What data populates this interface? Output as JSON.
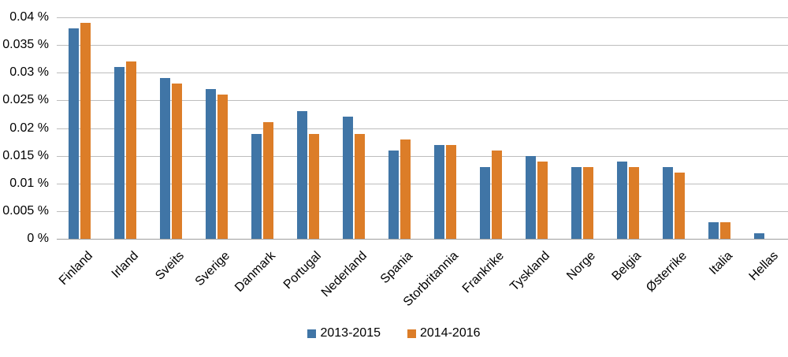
{
  "chart_data": {
    "type": "bar",
    "title": "",
    "xlabel": "",
    "ylabel": "",
    "categories": [
      "Finland",
      "Irland",
      "Sveits",
      "Sverige",
      "Danmark",
      "Portugal",
      "Nederland",
      "Spania",
      "Storbritannia",
      "Frankrike",
      "Tyskland",
      "Norge",
      "Belgia",
      "Østerrike",
      "Italia",
      "Hellas"
    ],
    "series": [
      {
        "name": "2013-2015",
        "color": "#4075a6",
        "values": [
          0.038,
          0.031,
          0.029,
          0.027,
          0.019,
          0.023,
          0.022,
          0.016,
          0.017,
          0.013,
          0.015,
          0.013,
          0.014,
          0.013,
          0.003,
          0.001
        ]
      },
      {
        "name": "2014-2016",
        "color": "#dc7d28",
        "values": [
          0.039,
          0.032,
          0.028,
          0.026,
          0.021,
          0.019,
          0.019,
          0.018,
          0.017,
          0.016,
          0.014,
          0.013,
          0.013,
          0.012,
          0.003,
          null
        ]
      }
    ],
    "ylim": [
      0,
      0.04
    ],
    "ytick_values": [
      0,
      0.005,
      0.01,
      0.015,
      0.02,
      0.025,
      0.03,
      0.035,
      0.04
    ],
    "ytick_labels": [
      "0 %",
      "0.005 %",
      "0.01 %",
      "0.015 %",
      "0.02 %",
      "0.025 %",
      "0.03 %",
      "0.035 %",
      "0.04 %"
    ],
    "grid": true,
    "legend_position": "bottom"
  },
  "colors": {
    "series1": "#4075a6",
    "series2": "#dc7d28",
    "gridline": "#bdbdbd",
    "baseline": "#9e9e9e",
    "text": "#000000",
    "background": "#ffffff"
  },
  "legend": {
    "items": [
      {
        "label": "2013-2015"
      },
      {
        "label": "2014-2016"
      }
    ]
  }
}
